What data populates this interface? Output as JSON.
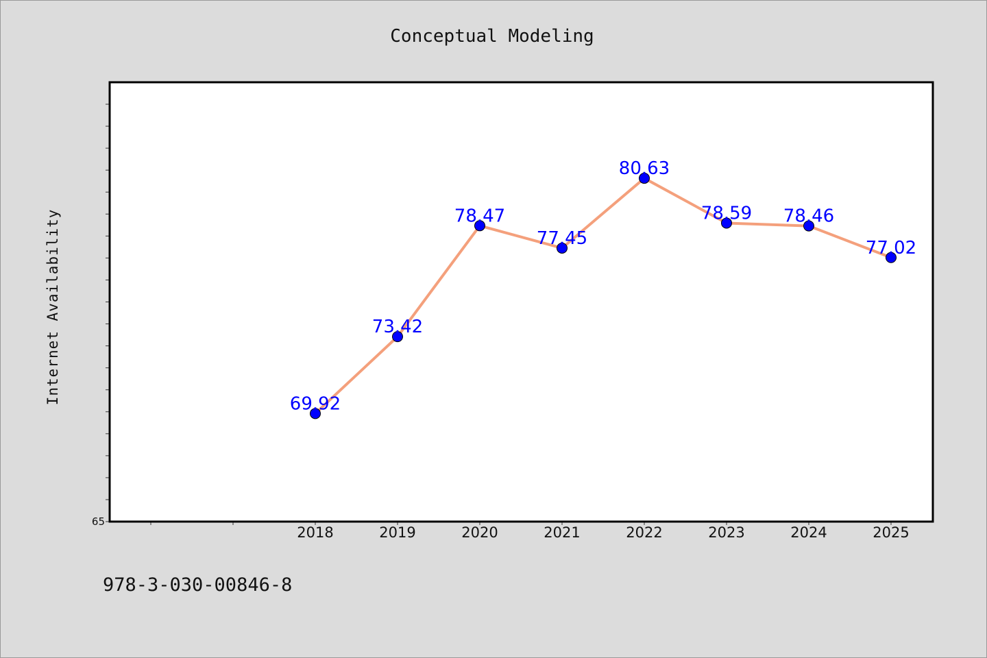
{
  "chart_data": {
    "type": "line",
    "title": "Conceptual Modeling",
    "xlabel": "",
    "ylabel": "Internet Availability",
    "categories": [
      "2018",
      "2019",
      "2020",
      "2021",
      "2022",
      "2023",
      "2024",
      "2025"
    ],
    "series": [
      {
        "values": [
          69.92,
          73.42,
          78.47,
          77.45,
          80.63,
          78.59,
          78.46,
          77.02
        ],
        "labels": [
          "69.92",
          "73.42",
          "78.47",
          "77.45",
          "80.63",
          "78.59",
          "78.46",
          "77.02"
        ]
      }
    ],
    "ylim": [
      65,
      85
    ],
    "yticks_labeled": [
      "65"
    ],
    "grid": false,
    "legend": "none",
    "colors": {
      "line": "#f4a07c",
      "marker": "#0000ff",
      "data_label": "#0000ff",
      "background": "#dcdcdc",
      "plot_area": "#ffffff"
    }
  },
  "footer": {
    "isbn": "978-3-030-00846-8"
  }
}
